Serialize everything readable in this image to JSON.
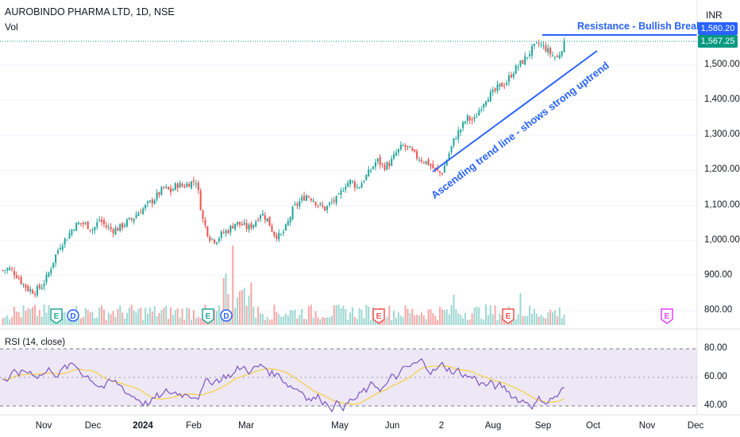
{
  "header": {
    "title": "AUROBINDO PHARMA LTD, 1D, NSE",
    "volume_label": "Vol",
    "currency": "INR"
  },
  "annotations": {
    "resistance": "Resistance - Bullish Breakout",
    "trendline": "Ascending trend line - shows strong uptrend"
  },
  "price_tags": {
    "resistance": "1,580.20",
    "last": "1,567.25"
  },
  "rsi": {
    "label": "RSI (14, close)",
    "ticks": [
      "80.00",
      "60.00",
      "40.00"
    ]
  },
  "colors": {
    "up": "#26a69a",
    "down": "#ef5350",
    "annotation": "#2962ff",
    "rsi_line": "#7e57c2",
    "rsi_ma": "#f5d142",
    "rsi_band": "#ede7f6"
  },
  "earnings_marker": "E",
  "dividend_marker": "D",
  "events": [
    {
      "type": "E",
      "date_label": "Nov",
      "color": "#26a69a"
    },
    {
      "type": "D",
      "date_label": "Nov",
      "color": "#2962ff"
    },
    {
      "type": "E",
      "date_label": "Feb",
      "color": "#26a69a"
    },
    {
      "type": "D",
      "date_label": "Feb",
      "color": "#2962ff"
    },
    {
      "type": "E",
      "date_label": "Jun",
      "color": "#ef5350"
    },
    {
      "type": "E",
      "date_label": "Aug",
      "color": "#ef5350"
    },
    {
      "type": "E",
      "date_label": "Nov",
      "color": "#e040fb"
    }
  ],
  "chart_data": {
    "type": "candlestick",
    "price_axis_ticks": [
      "1,500.00",
      "1,400.00",
      "1,300.00",
      "1,200.00",
      "1,100.00",
      "1,000.00",
      "900.00",
      "800.00"
    ],
    "price_axis_values": [
      1500,
      1400,
      1300,
      1200,
      1100,
      1000,
      900,
      800
    ],
    "time_axis_ticks": [
      "Nov",
      "Dec",
      "2024",
      "Feb",
      "Mar",
      "May",
      "Jun",
      "2",
      "Aug",
      "Sep",
      "Oct",
      "Nov",
      "Dec"
    ],
    "close_series_approx": [
      915,
      920,
      905,
      880,
      860,
      855,
      870,
      900,
      950,
      990,
      1010,
      1040,
      1050,
      1045,
      1030,
      1060,
      1040,
      1030,
      1035,
      1050,
      1060,
      1080,
      1095,
      1110,
      1130,
      1150,
      1140,
      1160,
      1155,
      1165,
      1170,
      1060,
      1010,
      1000,
      1020,
      1030,
      1050,
      1045,
      1035,
      1050,
      1080,
      1060,
      1020,
      1010,
      1040,
      1090,
      1110,
      1130,
      1120,
      1100,
      1090,
      1110,
      1120,
      1160,
      1170,
      1150,
      1175,
      1200,
      1230,
      1210,
      1220,
      1250,
      1270,
      1260,
      1240,
      1230,
      1220,
      1200,
      1190,
      1240,
      1290,
      1320,
      1350,
      1340,
      1380,
      1410,
      1420,
      1440,
      1450,
      1480,
      1500,
      1520,
      1545,
      1560,
      1550,
      1530,
      1520,
      1567
    ],
    "resistance_level": 1580.2,
    "last_price": 1567.25,
    "rsi_axis": [
      80,
      60,
      40
    ]
  }
}
